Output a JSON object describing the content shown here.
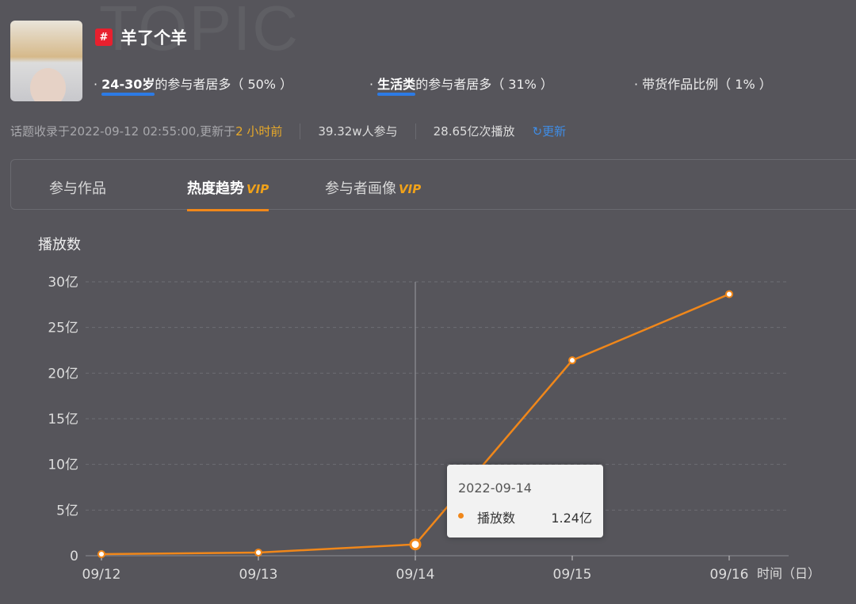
{
  "header": {
    "watermark": "TOPIC",
    "title": "羊了个羊",
    "hash_icon": "#"
  },
  "tags": [
    {
      "highlight": "24-30岁",
      "text": "的参与者居多（ 50% ）"
    },
    {
      "highlight": "生活类",
      "text": "的参与者居多（ 31% ）"
    },
    {
      "highlight": "",
      "text": "带货作品比例（ 1% ）"
    }
  ],
  "meta": {
    "recorded": "话题收录于2022-09-12 02:55:00,更新于",
    "updated": "2 小时前",
    "participants": "39.32w人参与",
    "plays": "28.65亿次播放",
    "refresh": "更新"
  },
  "tabs": [
    {
      "label": "参与作品",
      "vip": ""
    },
    {
      "label": "热度趋势",
      "vip": "VIP"
    },
    {
      "label": "参与者画像",
      "vip": "VIP"
    }
  ],
  "tooltip": {
    "date": "2022-09-14",
    "series": "播放数",
    "value": "1.24亿"
  },
  "chart_data": {
    "type": "line",
    "title": "播放数",
    "xlabel": "时间（日）",
    "ylabel": "播放数",
    "categories": [
      "09/12",
      "09/13",
      "09/14",
      "09/15",
      "09/16"
    ],
    "values": [
      0.17,
      0.35,
      1.24,
      21.4,
      28.65
    ],
    "yticks": [
      0,
      5,
      10,
      15,
      20,
      25,
      30
    ],
    "ytick_labels": [
      "0",
      "5亿",
      "10亿",
      "15亿",
      "20亿",
      "25亿",
      "30亿"
    ],
    "ylim": [
      0,
      30
    ],
    "grid": true,
    "color": "#f0871a",
    "highlight_index": 2
  }
}
